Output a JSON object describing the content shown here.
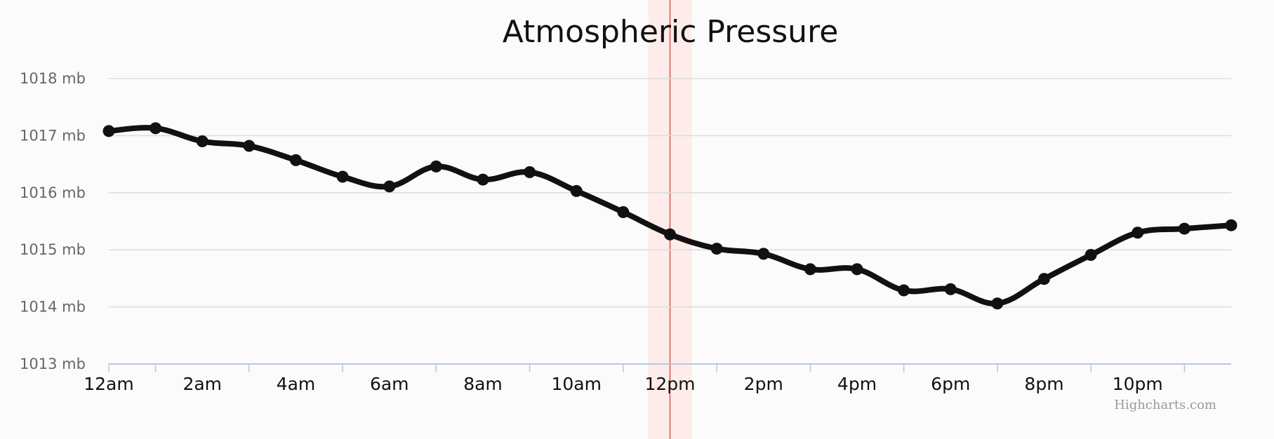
{
  "chart_data": {
    "type": "line",
    "title": "Atmospheric Pressure",
    "xlabel": "",
    "ylabel": "",
    "ylim": [
      1013,
      1018
    ],
    "y_ticks": [
      "1013 mb",
      "1014 mb",
      "1015 mb",
      "1016 mb",
      "1017 mb",
      "1018 mb"
    ],
    "x_tick_labels": [
      "12am",
      "2am",
      "4am",
      "6am",
      "8am",
      "10am",
      "12pm",
      "2pm",
      "4pm",
      "6pm",
      "8pm",
      "10pm"
    ],
    "x_hours": [
      0,
      1,
      2,
      3,
      4,
      5,
      6,
      7,
      8,
      9,
      10,
      11,
      12,
      13,
      14,
      15,
      16,
      17,
      18,
      19,
      20,
      21,
      22,
      23,
      24
    ],
    "series": [
      {
        "name": "Pressure",
        "values": [
          1017.08,
          1017.13,
          1016.9,
          1016.82,
          1016.57,
          1016.28,
          1016.11,
          1016.46,
          1016.23,
          1016.36,
          1016.03,
          1015.66,
          1015.27,
          1015.02,
          1014.93,
          1014.66,
          1014.66,
          1014.29,
          1014.31,
          1014.06,
          1014.49,
          1014.91,
          1015.3,
          1015.37,
          1015.43
        ]
      }
    ],
    "highlight": {
      "label": "12pm",
      "x_hour": 12
    },
    "colors": {
      "line": "#111111",
      "grid": "#dcdcdc",
      "axis": "#b7c6e6",
      "highlight_band": "#fdecea",
      "highlight_line": "#d9534f"
    }
  },
  "credits": "Highcharts.com"
}
